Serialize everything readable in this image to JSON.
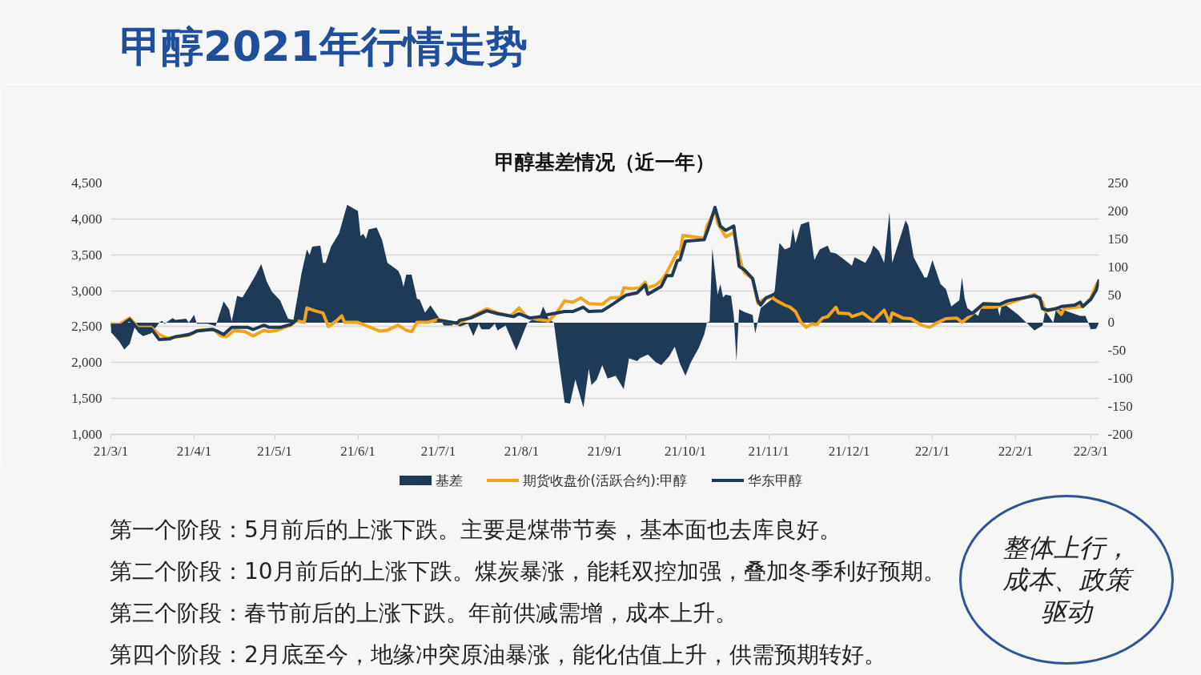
{
  "chart_data": {
    "type": "line",
    "title": "甲醇2021年行情走势",
    "subtitle": "甲醇基差情况（近一年）",
    "xlim": [
      "2021-03-01",
      "2022-03-04"
    ],
    "xticks": [
      {
        "value": "2021-03-01",
        "label": "21/3/1"
      },
      {
        "value": "2021-04-01",
        "label": "21/4/1"
      },
      {
        "value": "2021-05-01",
        "label": "21/5/1"
      },
      {
        "value": "2021-06-01",
        "label": "21/6/1"
      },
      {
        "value": "2021-07-01",
        "label": "21/7/1"
      },
      {
        "value": "2021-08-01",
        "label": "21/8/1"
      },
      {
        "value": "2021-09-01",
        "label": "21/9/1"
      },
      {
        "value": "2021-10-01",
        "label": "21/10/1"
      },
      {
        "value": "2021-11-01",
        "label": "21/11/1"
      },
      {
        "value": "2021-12-01",
        "label": "21/12/1"
      },
      {
        "value": "2022-01-01",
        "label": "22/1/1"
      },
      {
        "value": "2022-02-01",
        "label": "22/2/1"
      },
      {
        "value": "2022-03-01",
        "label": "22/3/1"
      }
    ],
    "ylim": [
      1000,
      4500
    ],
    "yticks": [
      {
        "value": 1000,
        "label": "1,000"
      },
      {
        "value": 1500,
        "label": "1,500"
      },
      {
        "value": 2000,
        "label": "2,000"
      },
      {
        "value": 2500,
        "label": "2,500"
      },
      {
        "value": 3000,
        "label": "3,000"
      },
      {
        "value": 3500,
        "label": "3,500"
      },
      {
        "value": 4000,
        "label": "4,000"
      },
      {
        "value": 4500,
        "label": "4,500"
      }
    ],
    "y2lim": [
      -200,
      250
    ],
    "y2ticks": [
      -200,
      -150,
      -100,
      -50,
      0,
      50,
      100,
      150,
      200,
      250
    ],
    "grid": "y",
    "legend": "bottom",
    "series": [
      {
        "name": "基差",
        "type": "area",
        "axis": "y2",
        "color": "#1f3a56",
        "x": [
          "2021-03-01",
          "2021-03-04",
          "2021-03-06",
          "2021-03-08",
          "2021-03-10",
          "2021-03-11",
          "2021-03-13",
          "2021-03-16",
          "2021-03-18",
          "2021-03-19",
          "2021-03-20",
          "2021-03-21",
          "2021-03-24",
          "2021-03-25",
          "2021-03-29",
          "2021-03-30",
          "2021-04-01",
          "2021-04-02",
          "2021-04-06",
          "2021-04-09",
          "2021-04-12",
          "2021-04-14",
          "2021-04-15",
          "2021-04-17",
          "2021-04-19",
          "2021-04-22",
          "2021-04-24",
          "2021-04-26",
          "2021-04-28",
          "2021-04-30",
          "2021-05-03",
          "2021-05-06",
          "2021-05-08",
          "2021-05-11",
          "2021-05-13",
          "2021-05-14",
          "2021-05-15",
          "2021-05-18",
          "2021-05-19",
          "2021-05-20",
          "2021-05-22",
          "2021-05-25",
          "2021-05-28",
          "2021-06-01",
          "2021-06-02",
          "2021-06-03",
          "2021-06-04",
          "2021-06-05",
          "2021-06-08",
          "2021-06-10",
          "2021-06-12",
          "2021-06-16",
          "2021-06-17",
          "2021-06-18",
          "2021-06-19",
          "2021-06-21",
          "2021-06-23",
          "2021-06-24",
          "2021-06-26",
          "2021-06-28",
          "2021-07-01",
          "2021-07-03",
          "2021-07-06",
          "2021-07-07",
          "2021-07-09",
          "2021-07-12",
          "2021-07-14",
          "2021-07-16",
          "2021-07-17",
          "2021-07-20",
          "2021-07-22",
          "2021-07-23",
          "2021-07-26",
          "2021-07-30",
          "2021-08-03",
          "2021-08-06",
          "2021-08-07",
          "2021-08-09",
          "2021-08-11",
          "2021-08-13",
          "2021-08-15",
          "2021-08-17",
          "2021-08-19",
          "2021-08-21",
          "2021-08-24",
          "2021-08-26",
          "2021-08-27",
          "2021-08-29",
          "2021-08-31",
          "2021-09-02",
          "2021-09-05",
          "2021-09-08",
          "2021-09-10",
          "2021-09-13",
          "2021-09-14",
          "2021-09-17",
          "2021-09-20",
          "2021-09-22",
          "2021-09-25",
          "2021-09-27",
          "2021-09-29",
          "2021-10-01",
          "2021-10-03",
          "2021-10-06",
          "2021-10-08",
          "2021-10-09",
          "2021-10-10",
          "2021-10-11",
          "2021-10-13",
          "2021-10-14",
          "2021-10-15",
          "2021-10-16",
          "2021-10-18",
          "2021-10-19",
          "2021-10-20",
          "2021-10-21",
          "2021-10-23",
          "2021-10-26",
          "2021-10-27",
          "2021-10-29",
          "2021-11-03",
          "2021-11-05",
          "2021-11-07",
          "2021-11-09",
          "2021-11-10",
          "2021-11-11",
          "2021-11-13",
          "2021-11-16",
          "2021-11-18",
          "2021-11-20",
          "2021-11-23",
          "2021-11-24",
          "2021-11-26",
          "2021-11-28",
          "2021-12-02",
          "2021-12-03",
          "2021-12-07",
          "2021-12-09",
          "2021-12-10",
          "2021-12-12",
          "2021-12-14",
          "2021-12-16",
          "2021-12-17",
          "2021-12-22",
          "2021-12-23",
          "2021-12-25",
          "2021-12-29",
          "2021-12-30",
          "2022-01-01",
          "2022-01-04",
          "2022-01-06",
          "2022-01-08",
          "2022-01-11",
          "2022-01-12",
          "2022-01-13",
          "2022-01-14",
          "2022-01-18",
          "2022-01-20",
          "2022-01-25",
          "2022-01-26",
          "2022-01-27",
          "2022-02-02",
          "2022-02-05",
          "2022-02-08",
          "2022-02-11",
          "2022-02-12",
          "2022-02-15",
          "2022-02-16",
          "2022-02-18",
          "2022-02-25",
          "2022-02-27",
          "2022-03-01",
          "2022-03-03",
          "2022-03-04"
        ],
        "values": [
          -17,
          -33,
          -48,
          -38,
          -5,
          -17,
          -24,
          -19,
          -7,
          0,
          3,
          -2,
          8,
          5,
          7,
          0,
          14,
          -2,
          -2,
          -6,
          38,
          24,
          2,
          48,
          45,
          69,
          86,
          105,
          74,
          55,
          40,
          7,
          5,
          88,
          131,
          121,
          136,
          138,
          107,
          107,
          136,
          160,
          211,
          200,
          155,
          159,
          150,
          167,
          170,
          148,
          107,
          93,
          83,
          64,
          86,
          86,
          43,
          41,
          18,
          31,
          10,
          -5,
          -5,
          -1,
          -7,
          -2,
          -24,
          -2,
          -12,
          -12,
          -2,
          -14,
          -5,
          -50,
          -2,
          10,
          2,
          29,
          7,
          0,
          -74,
          -143,
          -145,
          -102,
          -152,
          -83,
          -112,
          -102,
          -76,
          -100,
          -95,
          -119,
          -64,
          -69,
          -64,
          -57,
          -71,
          -76,
          -60,
          -43,
          -74,
          -95,
          -71,
          -45,
          -21,
          0,
          2,
          133,
          50,
          69,
          45,
          50,
          48,
          12,
          -69,
          24,
          19,
          14,
          -19,
          26,
          45,
          143,
          131,
          135,
          169,
          142,
          176,
          181,
          112,
          131,
          138,
          126,
          124,
          117,
          102,
          117,
          107,
          124,
          138,
          129,
          107,
          198,
          107,
          183,
          174,
          117,
          81,
          81,
          112,
          69,
          60,
          29,
          40,
          81,
          43,
          26,
          12,
          36,
          33,
          12,
          36,
          14,
          0,
          -14,
          -5,
          21,
          0,
          24,
          24,
          12,
          12,
          -12,
          -11,
          0
        ]
      },
      {
        "name": "期货收盘价(活跃合约):甲醇",
        "type": "line",
        "color": "#f4a31c",
        "x": [
          "2021-03-01",
          "2021-03-04",
          "2021-03-08",
          "2021-03-09",
          "2021-03-11",
          "2021-03-16",
          "2021-03-19",
          "2021-03-22",
          "2021-03-30",
          "2021-04-03",
          "2021-04-08",
          "2021-04-11",
          "2021-04-13",
          "2021-04-16",
          "2021-04-20",
          "2021-04-23",
          "2021-04-27",
          "2021-04-29",
          "2021-05-02",
          "2021-05-07",
          "2021-05-09",
          "2021-05-12",
          "2021-05-13",
          "2021-05-16",
          "2021-05-19",
          "2021-05-21",
          "2021-05-24",
          "2021-05-26",
          "2021-05-27",
          "2021-06-01",
          "2021-06-05",
          "2021-06-09",
          "2021-06-12",
          "2021-06-16",
          "2021-06-19",
          "2021-06-21",
          "2021-06-23",
          "2021-06-27",
          "2021-07-01",
          "2021-07-08",
          "2021-07-13",
          "2021-07-19",
          "2021-07-23",
          "2021-07-28",
          "2021-07-31",
          "2021-08-03",
          "2021-08-07",
          "2021-08-11",
          "2021-08-14",
          "2021-08-17",
          "2021-08-20",
          "2021-08-23",
          "2021-08-26",
          "2021-08-31",
          "2021-09-03",
          "2021-09-07",
          "2021-09-08",
          "2021-09-11",
          "2021-09-14",
          "2021-09-16",
          "2021-09-17",
          "2021-09-20",
          "2021-09-22",
          "2021-09-24",
          "2021-09-28",
          "2021-09-29",
          "2021-09-30",
          "2021-10-08",
          "2021-10-09",
          "2021-10-12",
          "2021-10-13",
          "2021-10-16",
          "2021-10-19",
          "2021-10-22",
          "2021-10-23",
          "2021-10-26",
          "2021-10-28",
          "2021-10-30",
          "2021-11-02",
          "2021-11-04",
          "2021-11-07",
          "2021-11-09",
          "2021-11-11",
          "2021-11-13",
          "2021-11-15",
          "2021-11-17",
          "2021-11-19",
          "2021-11-21",
          "2021-11-23",
          "2021-11-26",
          "2021-11-27",
          "2021-12-01",
          "2021-12-02",
          "2021-12-06",
          "2021-12-10",
          "2021-12-14",
          "2021-12-16",
          "2021-12-17",
          "2021-12-21",
          "2021-12-24",
          "2021-12-28",
          "2021-12-31",
          "2022-01-02",
          "2022-01-06",
          "2022-01-10",
          "2022-01-12",
          "2022-01-15",
          "2022-01-19",
          "2022-01-24",
          "2022-01-29",
          "2022-02-08",
          "2022-02-11",
          "2022-02-12",
          "2022-02-16",
          "2022-02-18",
          "2022-02-19",
          "2022-02-23",
          "2022-02-26",
          "2022-03-01",
          "2022-03-03",
          "2022-03-04"
        ],
        "values": [
          2540,
          2530,
          2620,
          2580,
          2490,
          2490,
          2390,
          2340,
          2380,
          2450,
          2470,
          2370,
          2360,
          2450,
          2430,
          2370,
          2450,
          2430,
          2450,
          2520,
          2580,
          2560,
          2760,
          2720,
          2690,
          2500,
          2580,
          2650,
          2560,
          2560,
          2500,
          2440,
          2450,
          2520,
          2450,
          2430,
          2560,
          2560,
          2600,
          2540,
          2630,
          2750,
          2690,
          2650,
          2760,
          2630,
          2600,
          2580,
          2690,
          2860,
          2840,
          2900,
          2820,
          2810,
          2900,
          2910,
          3040,
          3030,
          3040,
          3120,
          3040,
          3080,
          3140,
          3250,
          3540,
          3510,
          3770,
          3730,
          3900,
          4120,
          3940,
          3750,
          3810,
          3340,
          3250,
          3170,
          2820,
          2880,
          2910,
          2860,
          2800,
          2770,
          2710,
          2560,
          2490,
          2540,
          2530,
          2620,
          2640,
          2770,
          2690,
          2680,
          2640,
          2690,
          2580,
          2730,
          2560,
          2690,
          2620,
          2610,
          2520,
          2490,
          2540,
          2610,
          2620,
          2560,
          2650,
          2770,
          2770,
          2820,
          2950,
          2840,
          2710,
          2750,
          2670,
          2750,
          2770,
          2780,
          2900,
          3080,
          3140
        ]
      },
      {
        "name": "华东甲醇",
        "type": "line",
        "color": "#1f3a56",
        "x": [
          "2021-03-01",
          "2021-03-05",
          "2021-03-08",
          "2021-03-11",
          "2021-03-16",
          "2021-03-19",
          "2021-03-23",
          "2021-03-25",
          "2021-03-27",
          "2021-03-30",
          "2021-04-01",
          "2021-04-02",
          "2021-04-08",
          "2021-04-10",
          "2021-04-12",
          "2021-04-15",
          "2021-04-21",
          "2021-04-23",
          "2021-04-27",
          "2021-04-29",
          "2021-05-03",
          "2021-05-07",
          "2021-05-09",
          "2021-05-10",
          "2021-07-01",
          "2021-07-08",
          "2021-07-09",
          "2021-07-13",
          "2021-07-16",
          "2021-07-19",
          "2021-07-23",
          "2021-07-29",
          "2021-07-31",
          "2021-08-04",
          "2021-08-08",
          "2021-08-11",
          "2021-08-17",
          "2021-08-20",
          "2021-08-24",
          "2021-08-26",
          "2021-08-31",
          "2021-09-03",
          "2021-09-09",
          "2021-09-13",
          "2021-09-16",
          "2021-09-17",
          "2021-09-22",
          "2021-09-24",
          "2021-09-26",
          "2021-09-28",
          "2021-09-29",
          "2021-10-01",
          "2021-10-08",
          "2021-10-10",
          "2021-10-12",
          "2021-10-14",
          "2021-10-16",
          "2021-10-19",
          "2021-10-21",
          "2021-10-23",
          "2021-10-26",
          "2021-10-28",
          "2021-10-29",
          "2021-10-31",
          "2021-11-03",
          "2021-11-05",
          "2021-11-06",
          "2022-01-14",
          "2022-01-16",
          "2022-01-20",
          "2022-01-26",
          "2022-01-29",
          "2022-02-08",
          "2022-02-10",
          "2022-02-11",
          "2022-02-13",
          "2022-02-16",
          "2022-02-18",
          "2022-02-23",
          "2022-02-25",
          "2022-02-26",
          "2022-03-01",
          "2022-03-03",
          "2022-03-04"
        ],
        "values": [
          2520,
          2520,
          2600,
          2470,
          2470,
          2320,
          2330,
          2360,
          2370,
          2390,
          2420,
          2440,
          2460,
          2430,
          2390,
          2490,
          2490,
          2460,
          2520,
          2490,
          2490,
          2530,
          2590,
          null,
          2590,
          2550,
          2590,
          2620,
          2670,
          2720,
          2680,
          2640,
          2680,
          2620,
          2640,
          2670,
          2710,
          2710,
          2770,
          2710,
          2720,
          2790,
          2940,
          2970,
          3080,
          2950,
          3060,
          3210,
          3210,
          3420,
          3430,
          3690,
          3710,
          3920,
          4160,
          3900,
          3840,
          3900,
          3340,
          3290,
          3170,
          2860,
          2800,
          2900,
          2950,
          3010,
          null,
          2670,
          2690,
          2820,
          2810,
          2860,
          2930,
          2900,
          2750,
          2730,
          2750,
          2780,
          2800,
          2840,
          2780,
          2880,
          3010,
          3140
        ]
      }
    ],
    "annotations": [
      "第一个阶段：5月前后的上涨下跌。主要是煤带节奏，基本面也去库良好。",
      "第二个阶段：10月前后的上涨下跌。煤炭暴涨，能耗双控加强，叠加冬季利好预期。",
      "第三个阶段：春节前后的上涨下跌。年前供减需增，成本上升。",
      "第四个阶段：2月底至今，地缘冲突原油暴涨，能化估值上升，供需预期转好。",
      "整体上行，成本、政策驱动"
    ]
  }
}
